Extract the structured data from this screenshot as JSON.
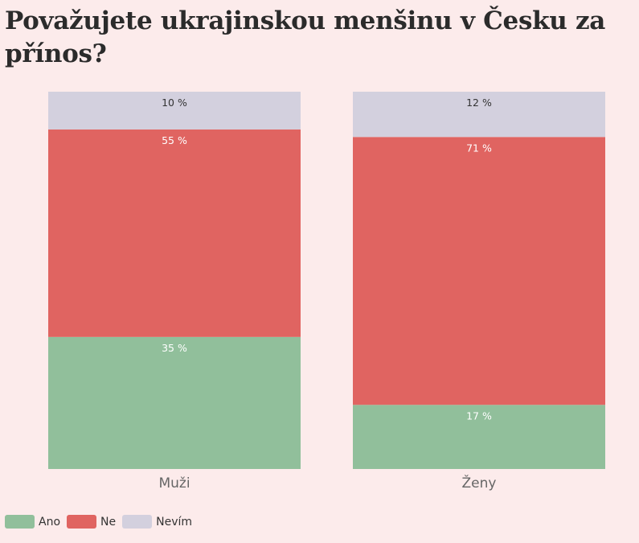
{
  "title": "Považujete ukrajinskou menšinu v Česku za přínos?",
  "chart_data": {
    "type": "bar",
    "stacked": true,
    "categories": [
      "Muži",
      "Ženy"
    ],
    "series": [
      {
        "name": "Ano",
        "values": [
          35,
          17
        ],
        "labels": [
          "35 %",
          "17 %"
        ],
        "color": "#91bf9b",
        "label_color": "#ffffff"
      },
      {
        "name": "Ne",
        "values": [
          55,
          71
        ],
        "labels": [
          "55 %",
          "71 %"
        ],
        "color": "#e06461",
        "label_color": "#ffffff"
      },
      {
        "name": "Nevím",
        "values": [
          10,
          12
        ],
        "labels": [
          "10 %",
          "12 %"
        ],
        "color": "#d3d0de",
        "label_color": "#333333"
      }
    ],
    "ylim": [
      0,
      100
    ],
    "grid": false,
    "legend_position": "bottom-left"
  }
}
